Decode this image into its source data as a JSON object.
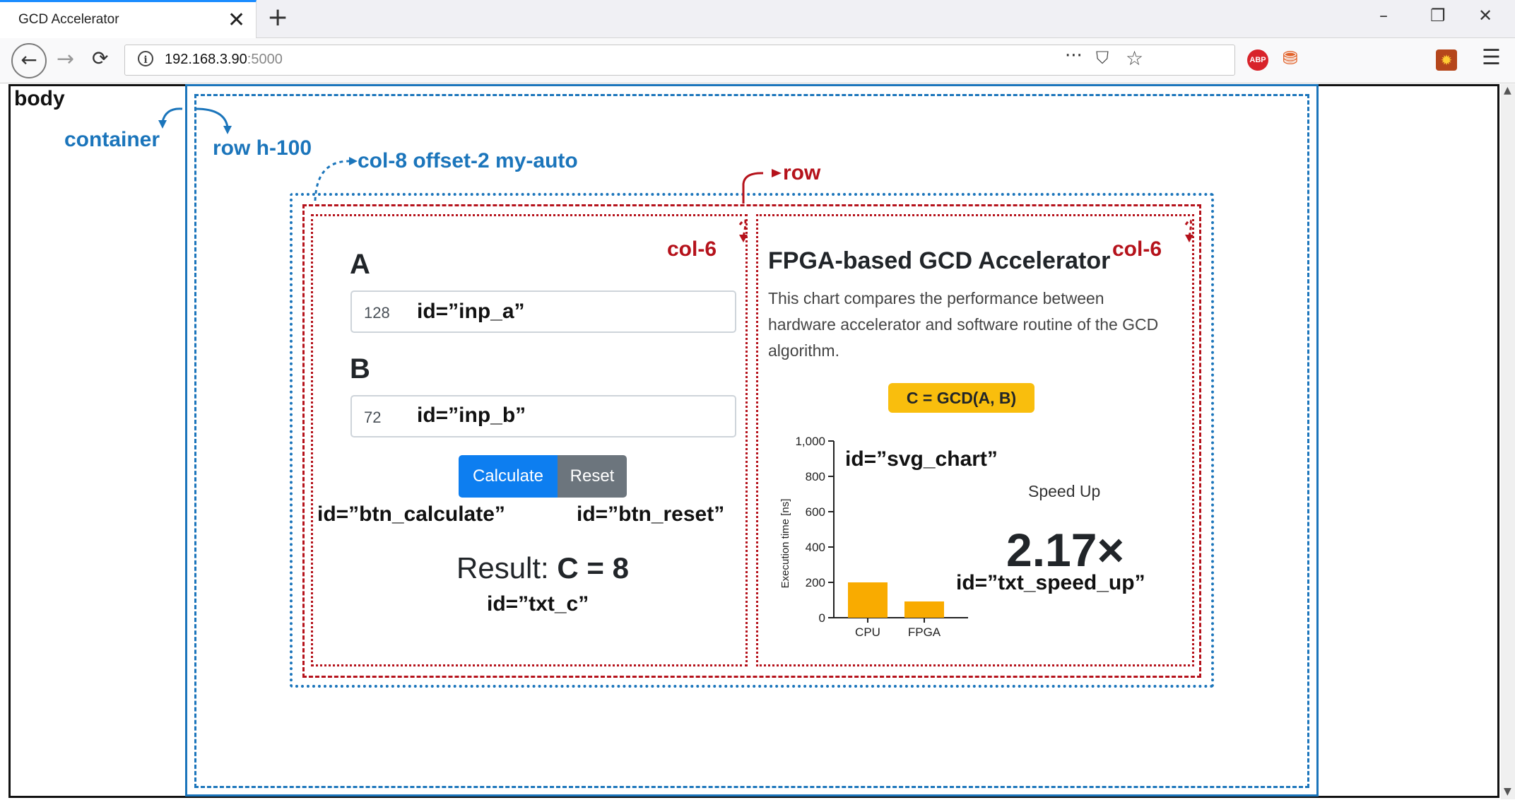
{
  "browser": {
    "tab_title": "GCD Accelerator",
    "tab_close": "✕",
    "new_tab": "+",
    "url_host": "192.168.3.90",
    "url_port": ":5000",
    "window_controls": [
      "–",
      "❐",
      "✕"
    ],
    "icons": [
      "back-icon",
      "forward-icon",
      "reload-icon",
      "info-icon",
      "page-actions-icon",
      "pocket-icon",
      "star-icon",
      "adblock-icon",
      "extension-icon",
      "extension-icon",
      "menu-icon"
    ]
  },
  "annotations": {
    "body": "body",
    "container": "container",
    "row_h100": "row h-100",
    "col8": "col-8 offset-2 my-auto",
    "row": "row",
    "col6_left": "col-6",
    "col6_right": "col-6",
    "inp_a": "id=”inp_a”",
    "inp_b": "id=”inp_b”",
    "btn_calculate": "id=”btn_calculate”",
    "btn_reset": "id=”btn_reset”",
    "txt_c": "id=”txt_c”",
    "svg_chart": "id=”svg_chart”",
    "txt_speed_up": "id=”txt_speed_up”"
  },
  "form": {
    "label_a": "A",
    "value_a": "128",
    "label_b": "B",
    "value_b": "72",
    "calculate_label": "Calculate",
    "reset_label": "Reset",
    "result_prefix": "Result: ",
    "result_value": "C = 8"
  },
  "info": {
    "title": "FPGA-based GCD Accelerator",
    "description": "This chart compares the performance between hardware accelerator and software routine of the GCD algorithm.",
    "badge": "C = GCD(A, B)",
    "speedup_label": "Speed Up",
    "speedup_value": "2.17×"
  },
  "colors": {
    "primary": "#0d7ef0",
    "secondary": "#6c757d",
    "warning": "#f9be0d",
    "bar": "#f9ab00",
    "annotation_blue": "#1b75bb",
    "annotation_red": "#b5121b"
  },
  "chart_data": {
    "type": "bar",
    "categories": [
      "CPU",
      "FPGA"
    ],
    "values": [
      200,
      92
    ],
    "ylabel": "Execution time [ns]",
    "ylim": [
      0,
      1000
    ],
    "yticks": [
      "0",
      "200",
      "400",
      "600",
      "800",
      "1,000"
    ],
    "grid": false
  }
}
